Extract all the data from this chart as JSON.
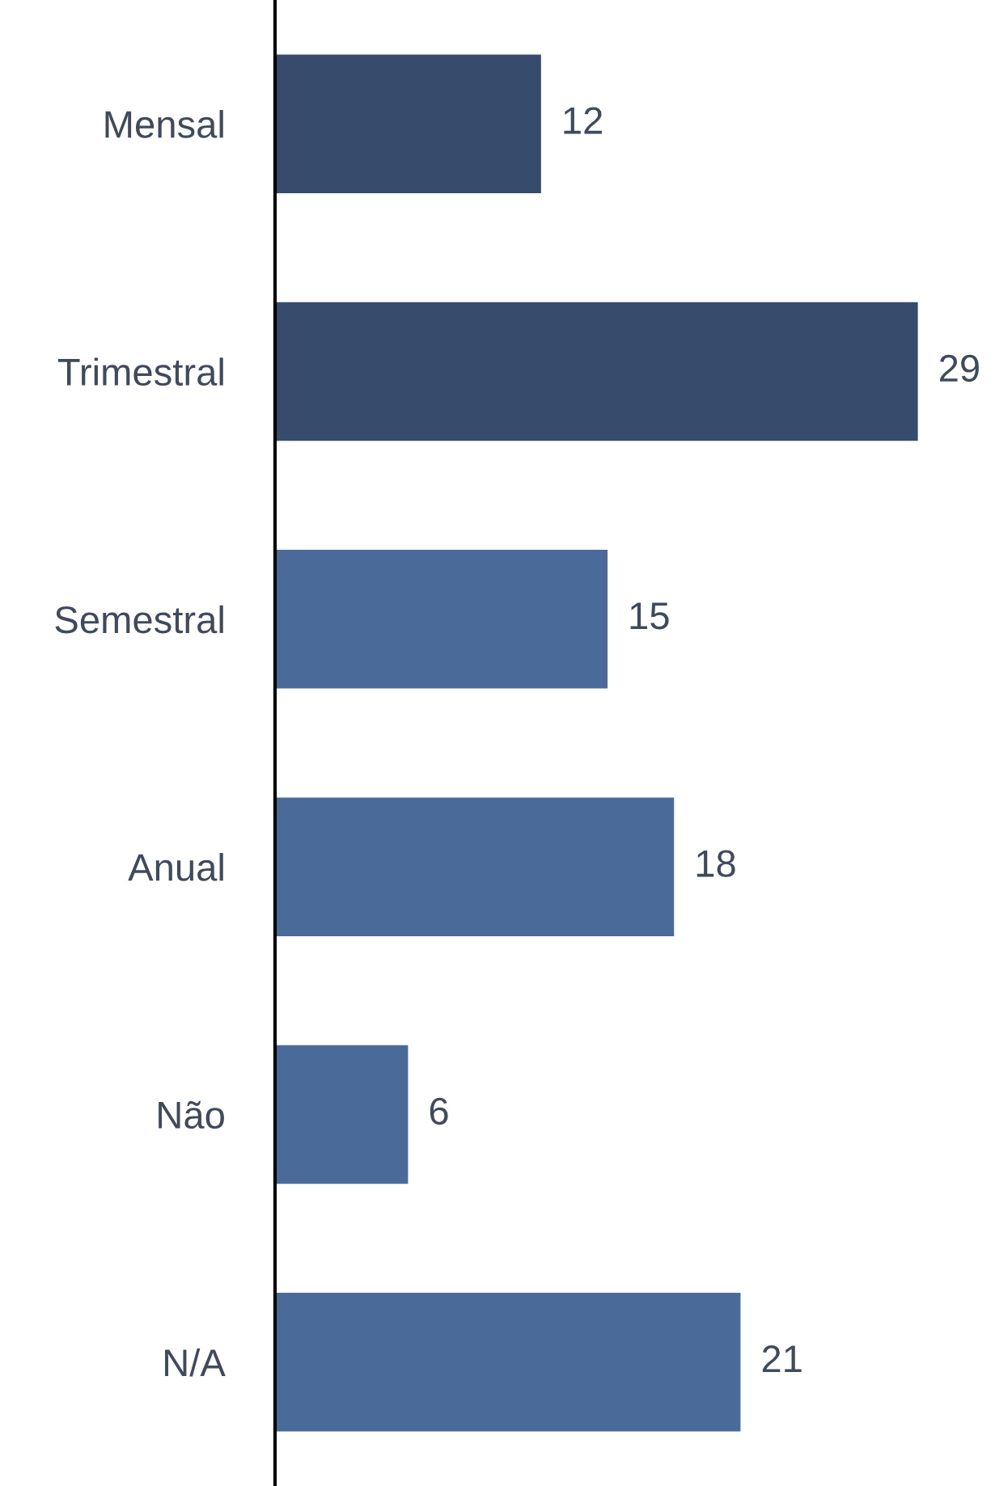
{
  "chart_data": {
    "type": "bar",
    "orientation": "horizontal",
    "categories": [
      "Mensal",
      "Trimestral",
      "Semestral",
      "Anual",
      "Não",
      "N/A"
    ],
    "values": [
      12,
      29,
      15,
      18,
      6,
      21
    ],
    "colors": [
      "#374c6c",
      "#374c6c",
      "#4a6b9a",
      "#4a6b9a",
      "#4a6b9a",
      "#4a6b9a"
    ],
    "data_labels": true,
    "grid": false,
    "legend": false
  }
}
